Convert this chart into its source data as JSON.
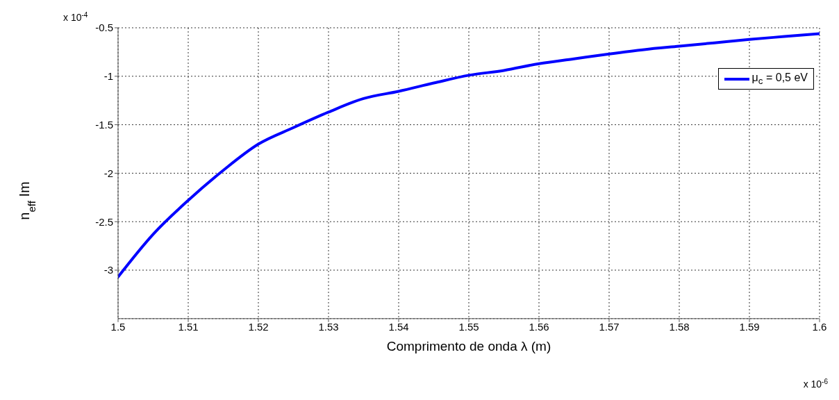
{
  "chart_data": {
    "type": "line",
    "xlabel": "Comprimento de onda λ (m)",
    "ylabel": "n$_{eff}$ Im",
    "annotations": [
      "x 10$^{-4}$",
      "x 10$^{-6}$"
    ],
    "x": [
      1.5,
      1.505,
      1.51,
      1.515,
      1.52,
      1.525,
      1.53,
      1.535,
      1.54,
      1.545,
      1.55,
      1.555,
      1.56,
      1.565,
      1.57,
      1.575,
      1.58,
      1.585,
      1.59,
      1.595,
      1.6
    ],
    "series": [
      {
        "name": "μ$_{c}$ = 0,5 eV",
        "color": "#0000ff",
        "values": [
          -3.07,
          -2.63,
          -2.28,
          -1.97,
          -1.7,
          -1.53,
          -1.37,
          -1.23,
          -1.155,
          -1.07,
          -0.99,
          -0.94,
          -0.87,
          -0.82,
          -0.77,
          -0.725,
          -0.69,
          -0.655,
          -0.62,
          -0.59,
          -0.56
        ]
      }
    ],
    "xlim": [
      1.5,
      1.6
    ],
    "xticks": [
      1.5,
      1.51,
      1.52,
      1.53,
      1.54,
      1.55,
      1.56,
      1.57,
      1.58,
      1.59,
      1.6
    ],
    "ylim": [
      -3.5,
      -0.5
    ],
    "yticks": [
      -3,
      -2.5,
      -2,
      -1.5,
      -1,
      -0.5
    ],
    "grid": true,
    "legend": "top right",
    "marker": "none",
    "line_style": "solid"
  }
}
